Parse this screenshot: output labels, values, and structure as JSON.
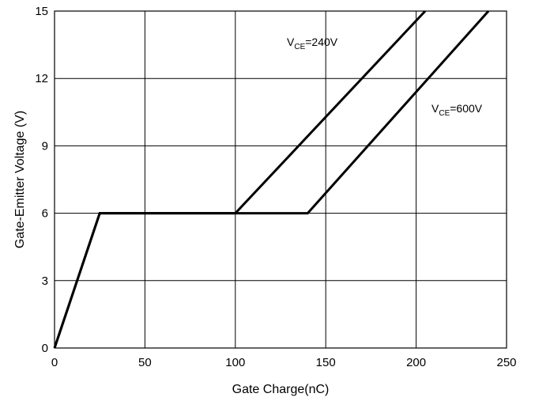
{
  "chart_data": {
    "type": "line",
    "xlabel": "Gate Charge(nC)",
    "ylabel": "Gate-Emitter Voltage (V)",
    "xlim": [
      0,
      250
    ],
    "ylim": [
      0,
      15
    ],
    "x_ticks": [
      "0",
      "50",
      "100",
      "150",
      "200",
      "250"
    ],
    "y_ticks": [
      "0",
      "3",
      "6",
      "9",
      "12",
      "15"
    ],
    "grid": true,
    "legend": "none",
    "series": [
      {
        "label_main": "V",
        "label_sub": "CE",
        "label_rest": "=240V",
        "points": [
          [
            0,
            0
          ],
          [
            25,
            6
          ],
          [
            100,
            6
          ],
          [
            205,
            15
          ]
        ]
      },
      {
        "label_main": "V",
        "label_sub": "CE",
        "label_rest": "=600V",
        "points": [
          [
            0,
            0
          ],
          [
            25,
            6
          ],
          [
            140,
            6
          ],
          [
            240,
            15
          ]
        ]
      }
    ],
    "colors": {
      "line": "#000000",
      "grid": "#000000",
      "background": "#ffffff"
    }
  }
}
